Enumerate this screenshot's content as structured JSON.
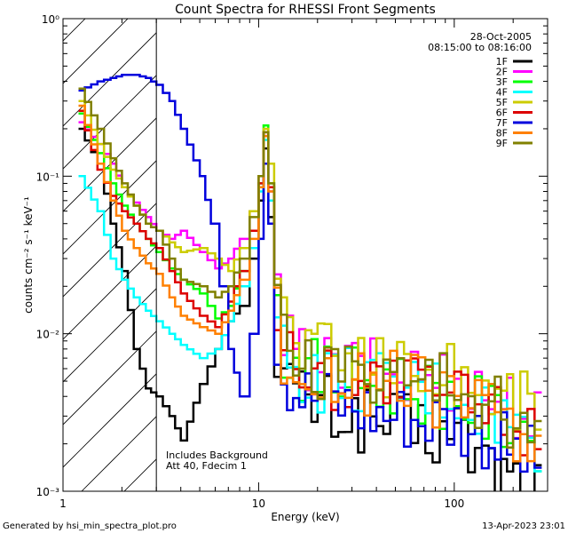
{
  "chart_data": {
    "type": "line",
    "title": "Count Spectra for RHESSI Front Segments",
    "xlabel": "Energy (keV)",
    "ylabel": "counts cm⁻² s⁻¹ keV⁻¹",
    "xscale": "log",
    "yscale": "log",
    "xlim": [
      1,
      300
    ],
    "ylim": [
      0.001,
      1
    ],
    "xticks": [
      {
        "value": 1,
        "label": "1"
      },
      {
        "value": 10,
        "label": "10"
      },
      {
        "value": 100,
        "label": "100"
      }
    ],
    "yticks": [
      {
        "value": 1,
        "label": "10⁰"
      },
      {
        "value": 0.1,
        "label": "10⁻¹"
      },
      {
        "value": 0.01,
        "label": "10⁻²"
      },
      {
        "value": 0.001,
        "label": "10⁻³"
      }
    ],
    "date_label": "28-Oct-2005",
    "time_range": "08:15:00 to 08:16:00",
    "annotations": [
      "Includes Background",
      "Att 40, Fdecim 1"
    ],
    "shaded_region": {
      "x_from": 1,
      "x_to": 3,
      "label": "hatched low-energy region"
    },
    "legend": [
      "1F",
      "2F",
      "3F",
      "4F",
      "5F",
      "6F",
      "7F",
      "8F",
      "9F"
    ],
    "series": [
      {
        "name": "1F",
        "color": "#000000",
        "points": [
          [
            1.2,
            0.2
          ],
          [
            1.5,
            0.12
          ],
          [
            1.75,
            0.05
          ],
          [
            2.0,
            0.025
          ],
          [
            2.3,
            0.008
          ],
          [
            2.65,
            0.0045
          ],
          [
            3.0,
            0.004
          ],
          [
            3.5,
            0.003
          ],
          [
            4.0,
            0.0021
          ],
          [
            5.0,
            0.0048
          ],
          [
            6.0,
            0.008
          ],
          [
            7.0,
            0.012
          ],
          [
            8.0,
            0.015
          ],
          [
            9.0,
            0.03
          ],
          [
            10.0,
            0.07
          ],
          [
            10.6,
            0.15
          ],
          [
            11.2,
            0.055
          ],
          [
            12.0,
            0.0085
          ],
          [
            13.0,
            0.006
          ],
          [
            15.0,
            0.004
          ],
          [
            20.0,
            0.0035
          ],
          [
            30.0,
            0.003
          ],
          [
            40.0,
            0.0028
          ],
          [
            60.0,
            0.0025
          ],
          [
            100.0,
            0.0022
          ],
          [
            150.0,
            0.0015
          ],
          [
            200.0,
            0.0012
          ],
          [
            280.0,
            0.001
          ]
        ]
      },
      {
        "name": "2F",
        "color": "#ff00ff",
        "points": [
          [
            1.2,
            0.22
          ],
          [
            1.5,
            0.16
          ],
          [
            1.75,
            0.12
          ],
          [
            2.0,
            0.085
          ],
          [
            2.3,
            0.068
          ],
          [
            2.65,
            0.055
          ],
          [
            3.0,
            0.045
          ],
          [
            3.5,
            0.04
          ],
          [
            4.0,
            0.045
          ],
          [
            5.0,
            0.033
          ],
          [
            6.0,
            0.026
          ],
          [
            7.0,
            0.03
          ],
          [
            8.0,
            0.04
          ],
          [
            9.0,
            0.06
          ],
          [
            10.0,
            0.1
          ],
          [
            10.6,
            0.18
          ],
          [
            11.2,
            0.08
          ],
          [
            12.0,
            0.016
          ],
          [
            13.0,
            0.009
          ],
          [
            15.0,
            0.007
          ],
          [
            20.0,
            0.006
          ],
          [
            30.0,
            0.006
          ],
          [
            40.0,
            0.0055
          ],
          [
            60.0,
            0.0055
          ],
          [
            100.0,
            0.005
          ],
          [
            150.0,
            0.004
          ],
          [
            200.0,
            0.0035
          ],
          [
            280.0,
            0.0025
          ]
        ]
      },
      {
        "name": "3F",
        "color": "#00ff00",
        "points": [
          [
            1.2,
            0.25
          ],
          [
            1.5,
            0.14
          ],
          [
            1.75,
            0.09
          ],
          [
            2.0,
            0.065
          ],
          [
            2.3,
            0.05
          ],
          [
            2.65,
            0.04
          ],
          [
            3.0,
            0.033
          ],
          [
            3.5,
            0.026
          ],
          [
            4.0,
            0.022
          ],
          [
            5.0,
            0.018
          ],
          [
            6.0,
            0.0125
          ],
          [
            7.0,
            0.015
          ],
          [
            8.0,
            0.025
          ],
          [
            9.0,
            0.045
          ],
          [
            10.0,
            0.09
          ],
          [
            10.6,
            0.21
          ],
          [
            11.2,
            0.09
          ],
          [
            12.0,
            0.014
          ],
          [
            13.0,
            0.008
          ],
          [
            15.0,
            0.0065
          ],
          [
            20.0,
            0.0055
          ],
          [
            30.0,
            0.005
          ],
          [
            40.0,
            0.005
          ],
          [
            60.0,
            0.0045
          ],
          [
            100.0,
            0.004
          ],
          [
            150.0,
            0.003
          ],
          [
            200.0,
            0.0028
          ],
          [
            280.0,
            0.002
          ]
        ]
      },
      {
        "name": "4F",
        "color": "#00ffff",
        "points": [
          [
            1.2,
            0.1
          ],
          [
            1.5,
            0.06
          ],
          [
            1.75,
            0.03
          ],
          [
            2.0,
            0.022
          ],
          [
            2.3,
            0.017
          ],
          [
            2.65,
            0.014
          ],
          [
            3.0,
            0.012
          ],
          [
            3.5,
            0.01
          ],
          [
            4.0,
            0.0085
          ],
          [
            5.0,
            0.007
          ],
          [
            6.0,
            0.008
          ],
          [
            7.0,
            0.012
          ],
          [
            8.0,
            0.02
          ],
          [
            9.0,
            0.035
          ],
          [
            10.0,
            0.08
          ],
          [
            10.6,
            0.17
          ],
          [
            11.2,
            0.07
          ],
          [
            12.0,
            0.012
          ],
          [
            13.0,
            0.0075
          ],
          [
            15.0,
            0.006
          ],
          [
            20.0,
            0.005
          ],
          [
            30.0,
            0.005
          ],
          [
            40.0,
            0.0045
          ],
          [
            60.0,
            0.0045
          ],
          [
            100.0,
            0.004
          ],
          [
            150.0,
            0.003
          ],
          [
            200.0,
            0.0025
          ],
          [
            280.0,
            0.0018
          ]
        ]
      },
      {
        "name": "5F",
        "color": "#cccc00",
        "points": [
          [
            1.2,
            0.3
          ],
          [
            1.5,
            0.16
          ],
          [
            1.75,
            0.11
          ],
          [
            2.0,
            0.085
          ],
          [
            2.3,
            0.065
          ],
          [
            2.65,
            0.05
          ],
          [
            3.0,
            0.045
          ],
          [
            3.5,
            0.038
          ],
          [
            4.0,
            0.033
          ],
          [
            5.0,
            0.035
          ],
          [
            6.0,
            0.03
          ],
          [
            7.0,
            0.025
          ],
          [
            8.0,
            0.035
          ],
          [
            9.0,
            0.06
          ],
          [
            10.0,
            0.1
          ],
          [
            10.6,
            0.2
          ],
          [
            11.2,
            0.12
          ],
          [
            12.0,
            0.025
          ],
          [
            13.0,
            0.014
          ],
          [
            15.0,
            0.009
          ],
          [
            20.0,
            0.008
          ],
          [
            30.0,
            0.007
          ],
          [
            40.0,
            0.0065
          ],
          [
            60.0,
            0.006
          ],
          [
            100.0,
            0.0055
          ],
          [
            150.0,
            0.0045
          ],
          [
            200.0,
            0.004
          ],
          [
            280.0,
            0.003
          ]
        ]
      },
      {
        "name": "6F",
        "color": "#dd0000",
        "points": [
          [
            1.2,
            0.26
          ],
          [
            1.5,
            0.11
          ],
          [
            1.75,
            0.075
          ],
          [
            2.0,
            0.06
          ],
          [
            2.3,
            0.05
          ],
          [
            2.65,
            0.04
          ],
          [
            3.0,
            0.035
          ],
          [
            3.5,
            0.025
          ],
          [
            4.0,
            0.018
          ],
          [
            5.0,
            0.013
          ],
          [
            6.0,
            0.011
          ],
          [
            7.0,
            0.016
          ],
          [
            8.0,
            0.025
          ],
          [
            9.0,
            0.045
          ],
          [
            10.0,
            0.09
          ],
          [
            10.6,
            0.19
          ],
          [
            11.2,
            0.085
          ],
          [
            12.0,
            0.014
          ],
          [
            13.0,
            0.008
          ],
          [
            15.0,
            0.0065
          ],
          [
            20.0,
            0.0055
          ],
          [
            30.0,
            0.005
          ],
          [
            40.0,
            0.005
          ],
          [
            60.0,
            0.0045
          ],
          [
            100.0,
            0.004
          ],
          [
            150.0,
            0.0032
          ],
          [
            200.0,
            0.0028
          ],
          [
            280.0,
            0.002
          ]
        ]
      },
      {
        "name": "7F",
        "color": "#0000dd",
        "points": [
          [
            1.2,
            0.35
          ],
          [
            1.5,
            0.4
          ],
          [
            1.75,
            0.42
          ],
          [
            2.0,
            0.44
          ],
          [
            2.3,
            0.44
          ],
          [
            2.65,
            0.42
          ],
          [
            3.0,
            0.38
          ],
          [
            3.5,
            0.3
          ],
          [
            4.0,
            0.2
          ],
          [
            5.0,
            0.1
          ],
          [
            5.7,
            0.05
          ],
          [
            6.3,
            0.02
          ],
          [
            7.0,
            0.008
          ],
          [
            8.0,
            0.004
          ],
          [
            9.0,
            0.01
          ],
          [
            10.0,
            0.04
          ],
          [
            10.6,
            0.12
          ],
          [
            11.2,
            0.05
          ],
          [
            12.0,
            0.01
          ],
          [
            13.0,
            0.006
          ],
          [
            15.0,
            0.0045
          ],
          [
            20.0,
            0.004
          ],
          [
            30.0,
            0.0035
          ],
          [
            40.0,
            0.0032
          ],
          [
            60.0,
            0.003
          ],
          [
            100.0,
            0.0028
          ],
          [
            150.0,
            0.0022
          ],
          [
            200.0,
            0.0018
          ],
          [
            280.0,
            0.0014
          ]
        ]
      },
      {
        "name": "8F",
        "color": "#ff8000",
        "points": [
          [
            1.2,
            0.28
          ],
          [
            1.5,
            0.12
          ],
          [
            1.75,
            0.07
          ],
          [
            2.0,
            0.045
          ],
          [
            2.3,
            0.035
          ],
          [
            2.65,
            0.028
          ],
          [
            3.0,
            0.024
          ],
          [
            3.5,
            0.017
          ],
          [
            4.0,
            0.013
          ],
          [
            5.0,
            0.011
          ],
          [
            6.0,
            0.01
          ],
          [
            7.0,
            0.014
          ],
          [
            8.0,
            0.022
          ],
          [
            9.0,
            0.04
          ],
          [
            10.0,
            0.085
          ],
          [
            10.6,
            0.18
          ],
          [
            11.2,
            0.08
          ],
          [
            12.0,
            0.013
          ],
          [
            13.0,
            0.0075
          ],
          [
            15.0,
            0.006
          ],
          [
            20.0,
            0.005
          ],
          [
            30.0,
            0.005
          ],
          [
            40.0,
            0.0048
          ],
          [
            60.0,
            0.0045
          ],
          [
            100.0,
            0.004
          ],
          [
            150.0,
            0.003
          ],
          [
            200.0,
            0.0026
          ],
          [
            280.0,
            0.002
          ]
        ]
      },
      {
        "name": "9F",
        "color": "#808000",
        "points": [
          [
            1.2,
            0.36
          ],
          [
            1.5,
            0.2
          ],
          [
            1.75,
            0.13
          ],
          [
            2.0,
            0.09
          ],
          [
            2.3,
            0.065
          ],
          [
            2.65,
            0.05
          ],
          [
            3.0,
            0.045
          ],
          [
            3.5,
            0.03
          ],
          [
            4.0,
            0.022
          ],
          [
            5.0,
            0.02
          ],
          [
            6.0,
            0.017
          ],
          [
            7.0,
            0.02
          ],
          [
            8.0,
            0.03
          ],
          [
            9.0,
            0.055
          ],
          [
            10.0,
            0.1
          ],
          [
            10.6,
            0.19
          ],
          [
            11.2,
            0.09
          ],
          [
            12.0,
            0.016
          ],
          [
            13.0,
            0.009
          ],
          [
            15.0,
            0.007
          ],
          [
            20.0,
            0.006
          ],
          [
            30.0,
            0.0058
          ],
          [
            40.0,
            0.0055
          ],
          [
            60.0,
            0.005
          ],
          [
            100.0,
            0.0045
          ],
          [
            150.0,
            0.0035
          ],
          [
            200.0,
            0.003
          ],
          [
            280.0,
            0.0022
          ]
        ]
      }
    ]
  },
  "footer": {
    "generator": "Generated by  hsi_min_spectra_plot.pro",
    "timestamp": "13-Apr-2023 23:01"
  }
}
